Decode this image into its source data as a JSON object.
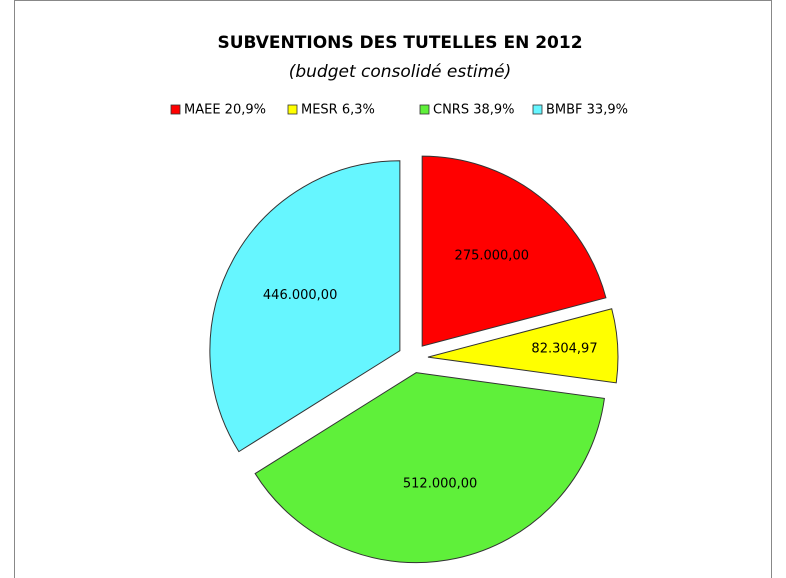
{
  "chart_data": {
    "type": "pie",
    "title": "SUBVENTIONS DES TUTELLES EN 2012",
    "subtitle": "(budget consolidé estimé)",
    "categories": [
      "MAEE 20,9%",
      "MESR 6,3%",
      "CNRS 38,9%",
      "BMBF 33,9%"
    ],
    "values": [
      275000,
      82304.97,
      512000,
      446000
    ],
    "value_labels": [
      "275.000,00",
      "82.304,97",
      "512.000,00",
      "446.000,00"
    ],
    "colors": [
      "#ff0000",
      "#ffff00",
      "#5ff03a",
      "#66f6ff"
    ],
    "legend": "top"
  }
}
